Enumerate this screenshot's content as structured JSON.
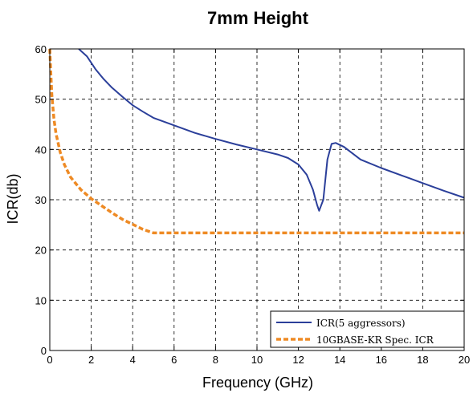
{
  "chart_data": {
    "type": "line",
    "title": "7mm Height",
    "xlabel": "Frequency (GHz)",
    "ylabel": "ICR(db)",
    "xlim": [
      0,
      20
    ],
    "ylim": [
      0,
      60
    ],
    "xticks": [
      0,
      2,
      4,
      6,
      8,
      10,
      12,
      14,
      16,
      18,
      20
    ],
    "yticks": [
      0,
      10,
      20,
      30,
      40,
      50,
      60
    ],
    "grid": "dashed",
    "legend_position": "bottom-right",
    "series": [
      {
        "name": "ICR(5 aggressors)",
        "color": "#2b3f9a",
        "style": "solid",
        "x": [
          1.4,
          1.8,
          2.2,
          2.6,
          3.0,
          3.5,
          4.0,
          4.5,
          5.0,
          6.0,
          7.0,
          8.0,
          9.0,
          10.0,
          11.0,
          11.5,
          12.0,
          12.4,
          12.7,
          12.9,
          13.0,
          13.2,
          13.4,
          13.6,
          13.8,
          14.2,
          15.0,
          16.0,
          17.0,
          18.0,
          19.0,
          20.0
        ],
        "y": [
          60.0,
          58.5,
          56.0,
          54.0,
          52.3,
          50.5,
          48.8,
          47.5,
          46.3,
          44.8,
          43.3,
          42.1,
          41.0,
          40.0,
          39.0,
          38.3,
          37.0,
          35.0,
          32.0,
          29.0,
          27.8,
          30.0,
          38.0,
          41.1,
          41.3,
          40.5,
          38.0,
          36.3,
          34.8,
          33.3,
          31.8,
          30.4
        ]
      },
      {
        "name": "10GBASE-KR Spec. ICR",
        "color": "#ee8a24",
        "style": "dashed",
        "x": [
          0.0,
          0.05,
          0.1,
          0.2,
          0.3,
          0.5,
          0.7,
          1.0,
          1.5,
          2.0,
          2.5,
          3.0,
          3.5,
          4.0,
          4.5,
          5.0,
          20.0
        ],
        "y": [
          60.0,
          55.0,
          50.7,
          46.0,
          43.2,
          39.5,
          37.0,
          34.5,
          32.0,
          30.2,
          28.8,
          27.4,
          26.1,
          25.1,
          24.1,
          23.4,
          23.4
        ]
      }
    ]
  }
}
